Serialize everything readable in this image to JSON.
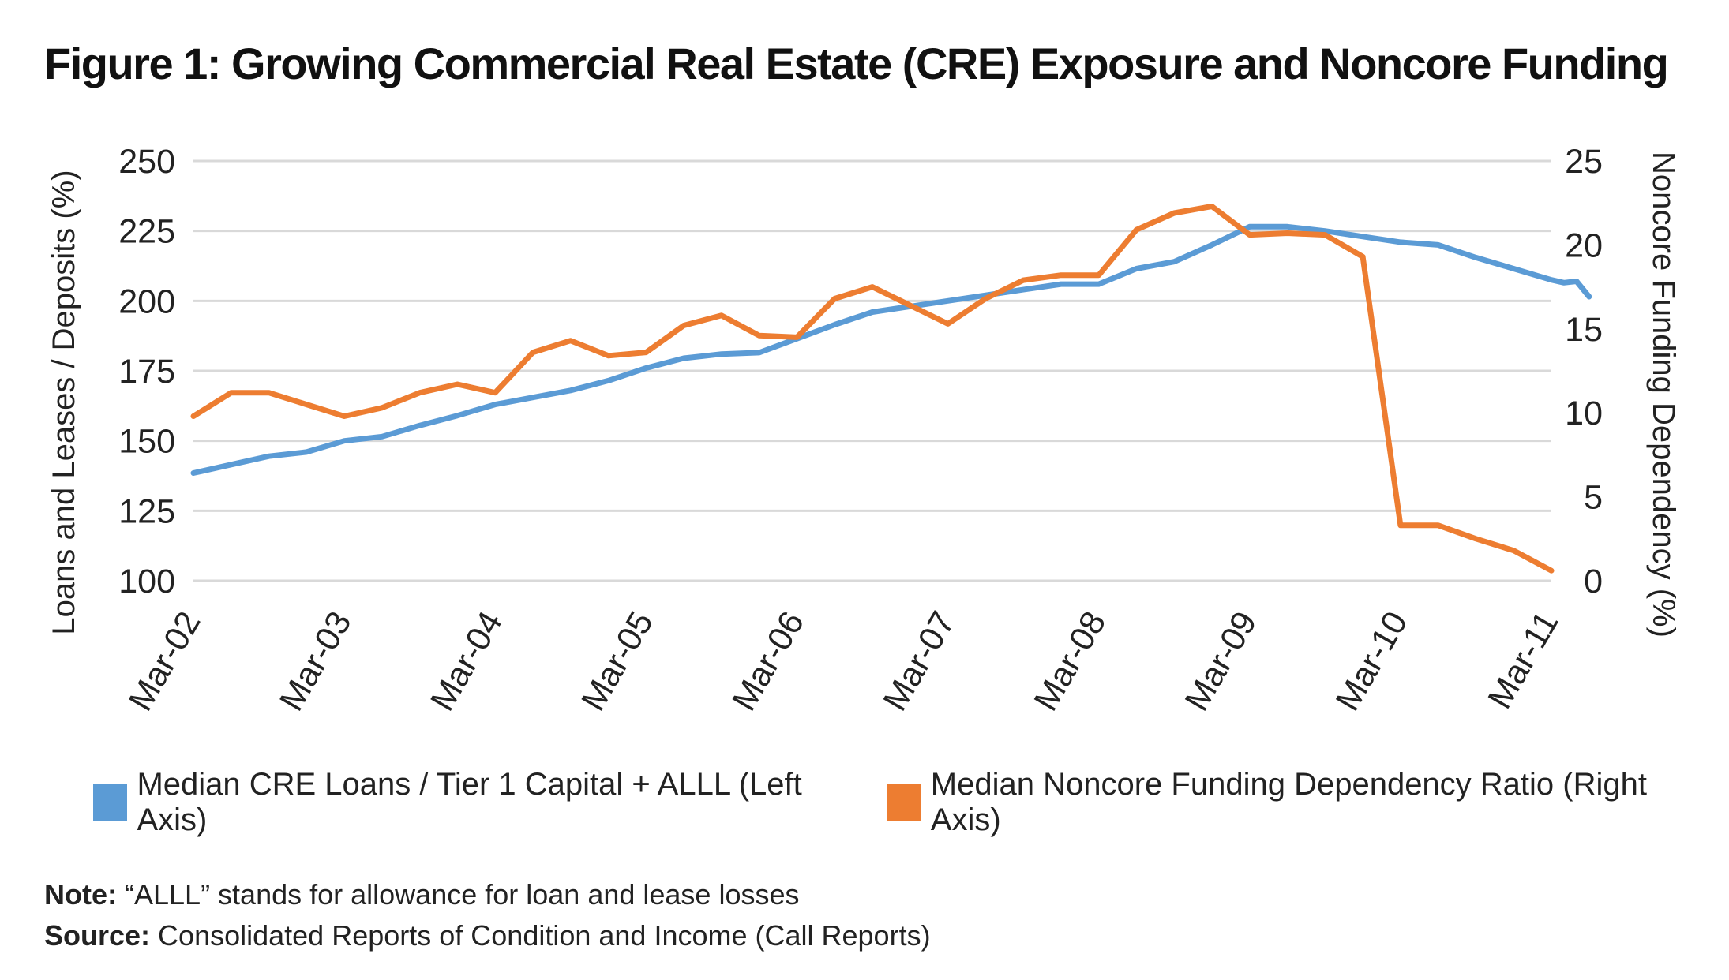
{
  "title": "Figure 1: Growing Commercial Real Estate (CRE) Exposure and Noncore Funding",
  "chart_data": {
    "type": "line",
    "x_tick_labels": [
      "Mar-02",
      "Mar-03",
      "Mar-04",
      "Mar-05",
      "Mar-06",
      "Mar-07",
      "Mar-08",
      "Mar-09",
      "Mar-10",
      "Mar-11"
    ],
    "left_axis": {
      "label": "Loans and Leases / Deposits (%)",
      "ylim": [
        100,
        250
      ],
      "ticks": [
        100,
        125,
        150,
        175,
        200,
        225,
        250
      ]
    },
    "right_axis": {
      "label": "Noncore Funding Dependency (%)",
      "ylim": [
        0,
        25
      ],
      "ticks": [
        0,
        5,
        10,
        15,
        20,
        25
      ]
    },
    "grid": "horizontal",
    "legend_placement": "bottom",
    "series": [
      {
        "name": "Median CRE Loans / Tier 1 Capital + ALLL (Left Axis)",
        "axis": "left",
        "color": "#5B9BD5",
        "points": [
          [
            "Mar-02",
            138.5
          ],
          [
            "Jun-02",
            141.5
          ],
          [
            "Sep-02",
            144.5
          ],
          [
            "Dec-02",
            146
          ],
          [
            "Mar-03",
            150
          ],
          [
            "Jun-03",
            151.5
          ],
          [
            "Sep-03",
            155.5
          ],
          [
            "Dec-03",
            159
          ],
          [
            "Mar-04",
            163
          ],
          [
            "Jun-04",
            165.5
          ],
          [
            "Sep-04",
            168
          ],
          [
            "Dec-04",
            171.5
          ],
          [
            "Mar-05",
            176
          ],
          [
            "Jun-05",
            179.5
          ],
          [
            "Sep-05",
            181
          ],
          [
            "Dec-05",
            181.5
          ],
          [
            "Mar-06",
            186.5
          ],
          [
            "Jun-06",
            191.5
          ],
          [
            "Sep-06",
            196
          ],
          [
            "Dec-06",
            198
          ],
          [
            "Mar-07",
            200
          ],
          [
            "Jun-07",
            202
          ],
          [
            "Sep-07",
            204
          ],
          [
            "Dec-07",
            206
          ],
          [
            "Mar-08",
            206
          ],
          [
            "Jun-08",
            211.5
          ],
          [
            "Sep-08",
            214
          ],
          [
            "Dec-08",
            220
          ],
          [
            "Mar-09",
            226.5
          ],
          [
            "Jun-09",
            226.5
          ],
          [
            "Sep-09",
            225
          ],
          [
            "Dec-09",
            223
          ],
          [
            "Mar-10",
            221
          ],
          [
            "Jun-10",
            220
          ],
          [
            "Sep-10",
            215.5
          ],
          [
            "Dec-10",
            211.5
          ],
          [
            "Mar-11",
            207.5
          ],
          [
            "Apr-11",
            206.5
          ],
          [
            "May-11",
            207
          ],
          [
            "Jun-11",
            201.5
          ]
        ]
      },
      {
        "name": "Median Noncore Funding Dependency Ratio (Right Axis)",
        "axis": "right",
        "color": "#ED7D31",
        "points": [
          [
            "Mar-02",
            9.8
          ],
          [
            "Jun-02",
            11.2
          ],
          [
            "Sep-02",
            11.2
          ],
          [
            "Dec-02",
            10.5
          ],
          [
            "Mar-03",
            9.8
          ],
          [
            "Jun-03",
            10.3
          ],
          [
            "Sep-03",
            11.2
          ],
          [
            "Dec-03",
            11.7
          ],
          [
            "Mar-04",
            11.2
          ],
          [
            "Jun-04",
            13.6
          ],
          [
            "Sep-04",
            14.3
          ],
          [
            "Dec-04",
            13.4
          ],
          [
            "Mar-05",
            13.6
          ],
          [
            "Jun-05",
            15.2
          ],
          [
            "Sep-05",
            15.8
          ],
          [
            "Dec-05",
            14.6
          ],
          [
            "Mar-06",
            14.5
          ],
          [
            "Jun-06",
            16.8
          ],
          [
            "Sep-06",
            17.5
          ],
          [
            "Dec-06",
            16.4
          ],
          [
            "Mar-07",
            15.3
          ],
          [
            "Jun-07",
            16.8
          ],
          [
            "Sep-07",
            17.9
          ],
          [
            "Dec-07",
            18.2
          ],
          [
            "Mar-08",
            18.2
          ],
          [
            "Jun-08",
            20.9
          ],
          [
            "Sep-08",
            21.9
          ],
          [
            "Dec-08",
            22.3
          ],
          [
            "Mar-09",
            20.6
          ],
          [
            "Jun-09",
            20.7
          ],
          [
            "Sep-09",
            20.6
          ],
          [
            "Dec-09",
            19.3
          ],
          [
            "Mar-10",
            3.3
          ],
          [
            "Jun-10",
            3.3
          ],
          [
            "Sep-10",
            2.5
          ],
          [
            "Dec-10",
            1.8
          ],
          [
            "Mar-11",
            0.6
          ]
        ]
      }
    ]
  },
  "legend": [
    {
      "label": "Median CRE Loans / Tier 1 Capital + ALLL (Left Axis)",
      "color": "#5B9BD5"
    },
    {
      "label": "Median Noncore Funding Dependency Ratio (Right Axis)",
      "color": "#ED7D31"
    }
  ],
  "note": {
    "label": "Note:",
    "text": " “ALLL” stands for allowance for loan and lease losses"
  },
  "source": {
    "label": "Source:",
    "text": " Consolidated Reports of Condition and Income (Call Reports)"
  }
}
